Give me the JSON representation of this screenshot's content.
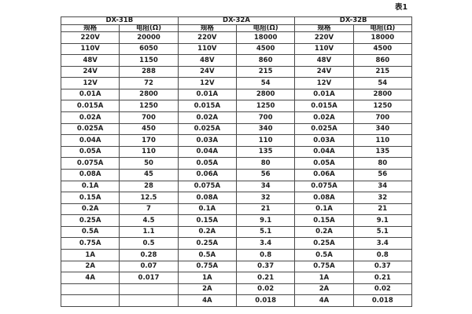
{
  "page": {
    "caption": "表1"
  },
  "table": {
    "groups": [
      {
        "name": "DX-31B",
        "spec_header": "规格",
        "resistance_header": "电阻(Ω)"
      },
      {
        "name": "DX-32A",
        "spec_header": "规格",
        "resistance_header": "电阻(Ω)"
      },
      {
        "name": "DX-32B",
        "spec_header": "规格",
        "resistance_header": "电阻(Ω)"
      }
    ],
    "rows": [
      [
        "220V",
        "20000",
        "220V",
        "18000",
        "220V",
        "18000"
      ],
      [
        "110V",
        "6050",
        "110V",
        "4500",
        "110V",
        "4500"
      ],
      [
        "48V",
        "1150",
        "48V",
        "860",
        "48V",
        "860"
      ],
      [
        "24V",
        "288",
        "24V",
        "215",
        "24V",
        "215"
      ],
      [
        "12V",
        "72",
        "12V",
        "54",
        "12V",
        "54"
      ],
      [
        "0.01A",
        "2800",
        "0.01A",
        "2800",
        "0.01A",
        "2800"
      ],
      [
        "0.015A",
        "1250",
        "0.015A",
        "1250",
        "0.015A",
        "1250"
      ],
      [
        "0.02A",
        "700",
        "0.02A",
        "700",
        "0.02A",
        "700"
      ],
      [
        "0.025A",
        "450",
        "0.025A",
        "340",
        "0.025A",
        "340"
      ],
      [
        "0.04A",
        "170",
        "0.03A",
        "110",
        "0.03A",
        "110"
      ],
      [
        "0.05A",
        "110",
        "0.04A",
        "135",
        "0.04A",
        "135"
      ],
      [
        "0.075A",
        "50",
        "0.05A",
        "80",
        "0.05A",
        "80"
      ],
      [
        "0.08A",
        "45",
        "0.06A",
        "56",
        "0.06A",
        "56"
      ],
      [
        "0.1A",
        "28",
        "0.075A",
        "34",
        "0.075A",
        "34"
      ],
      [
        "0.15A",
        "12.5",
        "0.08A",
        "32",
        "0.08A",
        "32"
      ],
      [
        "0.2A",
        "7",
        "0.1A",
        "21",
        "0.1A",
        "21"
      ],
      [
        "0.25A",
        "4.5",
        "0.15A",
        "9.1",
        "0.15A",
        "9.1"
      ],
      [
        "0.5A",
        "1.1",
        "0.2A",
        "5.1",
        "0.2A",
        "5.1"
      ],
      [
        "0.75A",
        "0.5",
        "0.25A",
        "3.4",
        "0.25A",
        "3.4"
      ],
      [
        "1A",
        "0.28",
        "0.5A",
        "0.8",
        "0.5A",
        "0.8"
      ],
      [
        "2A",
        "0.07",
        "0.75A",
        "0.37",
        "0.75A",
        "0.37"
      ],
      [
        "4A",
        "0.017",
        "1A",
        "0.21",
        "1A",
        "0.21"
      ],
      [
        "",
        "",
        "2A",
        "0.02",
        "2A",
        "0.02"
      ],
      [
        "",
        "",
        "4A",
        "0.018",
        "4A",
        "0.018"
      ]
    ]
  },
  "colors": {
    "border": "#4a4a4a",
    "text": "#1d1d1d",
    "background": "#ffffff"
  }
}
